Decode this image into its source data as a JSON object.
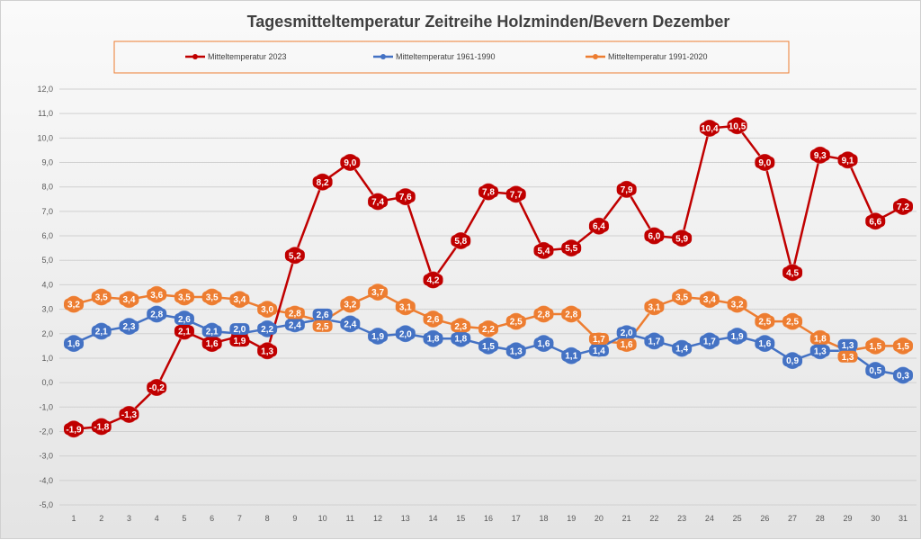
{
  "chart_data": {
    "type": "line",
    "title": "Tagesmitteltemperatur Zeitreihe Holzminden/Bevern Dezember",
    "xlabel": "",
    "ylabel": "",
    "x": [
      1,
      2,
      3,
      4,
      5,
      6,
      7,
      8,
      9,
      10,
      11,
      12,
      13,
      14,
      15,
      16,
      17,
      18,
      19,
      20,
      21,
      22,
      23,
      24,
      25,
      26,
      27,
      28,
      29,
      30,
      31
    ],
    "ylim": [
      -5,
      12
    ],
    "yticks": [
      "12,0",
      "11,0",
      "10,0",
      "9,0",
      "8,0",
      "7,0",
      "6,0",
      "5,0",
      "4,0",
      "3,0",
      "2,0",
      "1,0",
      "0,0",
      "-1,0",
      "-2,0",
      "-3,0",
      "-4,0",
      "-5,0"
    ],
    "grid": true,
    "legend_position": "top",
    "series": [
      {
        "name": "Mitteltemperatur 2023",
        "color": "#c00000",
        "values": [
          -1.9,
          -1.8,
          -1.3,
          -0.2,
          2.1,
          1.6,
          1.9,
          1.3,
          5.2,
          8.2,
          9.0,
          7.4,
          7.6,
          4.2,
          5.8,
          7.8,
          7.7,
          5.4,
          5.5,
          6.4,
          7.9,
          6.0,
          5.9,
          10.4,
          10.5,
          9.0,
          4.5,
          9.3,
          9.1,
          6.6,
          7.2
        ]
      },
      {
        "name": "Mitteltemperatur 1961-1990",
        "color": "#4472c4",
        "values": [
          1.6,
          2.1,
          2.3,
          2.8,
          2.6,
          2.1,
          2.0,
          2.2,
          2.4,
          2.6,
          2.4,
          1.9,
          2.0,
          1.8,
          1.8,
          1.5,
          1.3,
          1.6,
          1.1,
          1.4,
          2.0,
          1.7,
          1.4,
          1.7,
          1.9,
          1.6,
          0.9,
          1.3,
          1.3,
          0.5,
          0.3
        ]
      },
      {
        "name": "Mitteltemperatur 1991-2020",
        "color": "#ed7d31",
        "values": [
          3.2,
          3.5,
          3.4,
          3.6,
          3.5,
          3.5,
          3.4,
          3.0,
          2.8,
          2.5,
          3.2,
          3.7,
          3.1,
          2.6,
          2.3,
          2.2,
          2.5,
          2.8,
          2.8,
          1.7,
          1.6,
          3.1,
          3.5,
          3.4,
          3.2,
          2.5,
          2.5,
          1.8,
          1.3,
          1.5,
          1.5
        ]
      }
    ]
  }
}
